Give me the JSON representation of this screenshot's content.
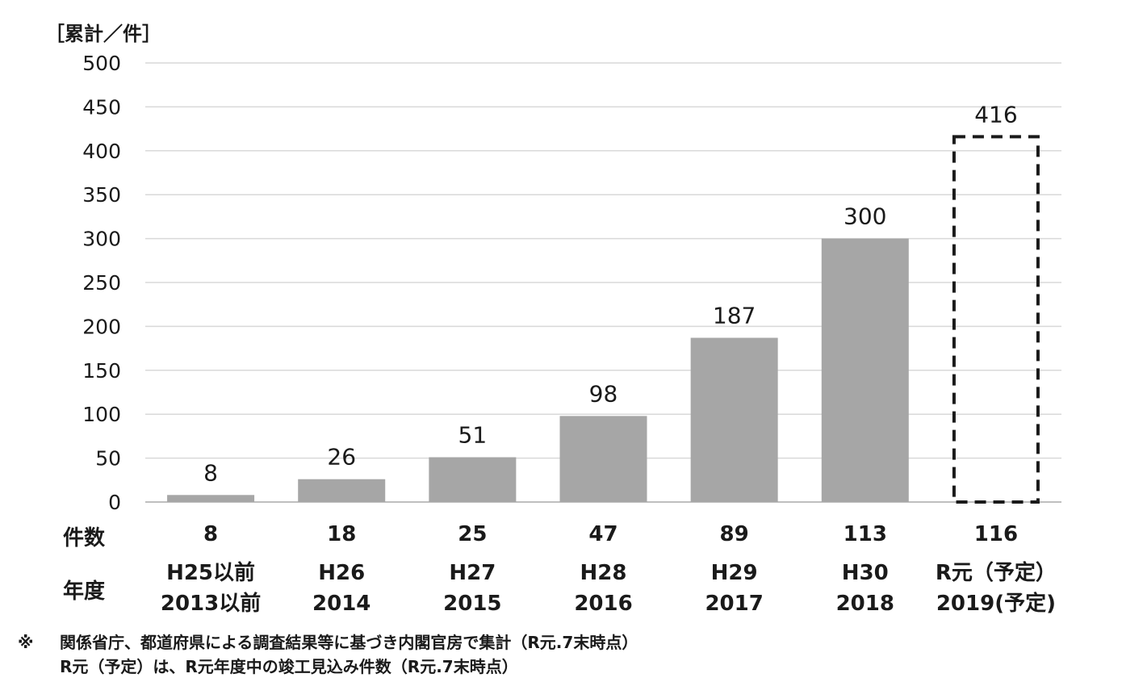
{
  "chart_data": {
    "type": "bar",
    "ylabel": "［累計／件］",
    "ylim": [
      0,
      500
    ],
    "yticks": [
      0,
      50,
      100,
      150,
      200,
      250,
      300,
      350,
      400,
      450,
      500
    ],
    "grid": true,
    "categories": [
      "H25以前",
      "H26",
      "H27",
      "H28",
      "H29",
      "H30",
      "R元（予定）"
    ],
    "years": [
      "2013以前",
      "2014",
      "2015",
      "2016",
      "2017",
      "2018",
      "2019(予定)"
    ],
    "values": [
      8,
      26,
      51,
      98,
      187,
      300,
      416
    ],
    "data_labels": [
      "8",
      "26",
      "51",
      "98",
      "187",
      "300",
      "416"
    ],
    "counts": [
      "8",
      "18",
      "25",
      "47",
      "89",
      "113",
      "116"
    ],
    "projected": [
      false,
      false,
      false,
      false,
      false,
      false,
      true
    ],
    "bar_color": "#a6a6a6",
    "projected_border_color": "#1a1a1a",
    "grid_color": "#d9d9d9"
  },
  "table": {
    "count_label": "件数",
    "year_label": "年度"
  },
  "notes": {
    "mark": "※",
    "line1": "関係省庁、都道府県による調査結果等に基づき内閣官房で集計（R元.7末時点）",
    "line2": "R元（予定）は、R元年度中の竣工見込み件数（R元.7末時点）"
  }
}
